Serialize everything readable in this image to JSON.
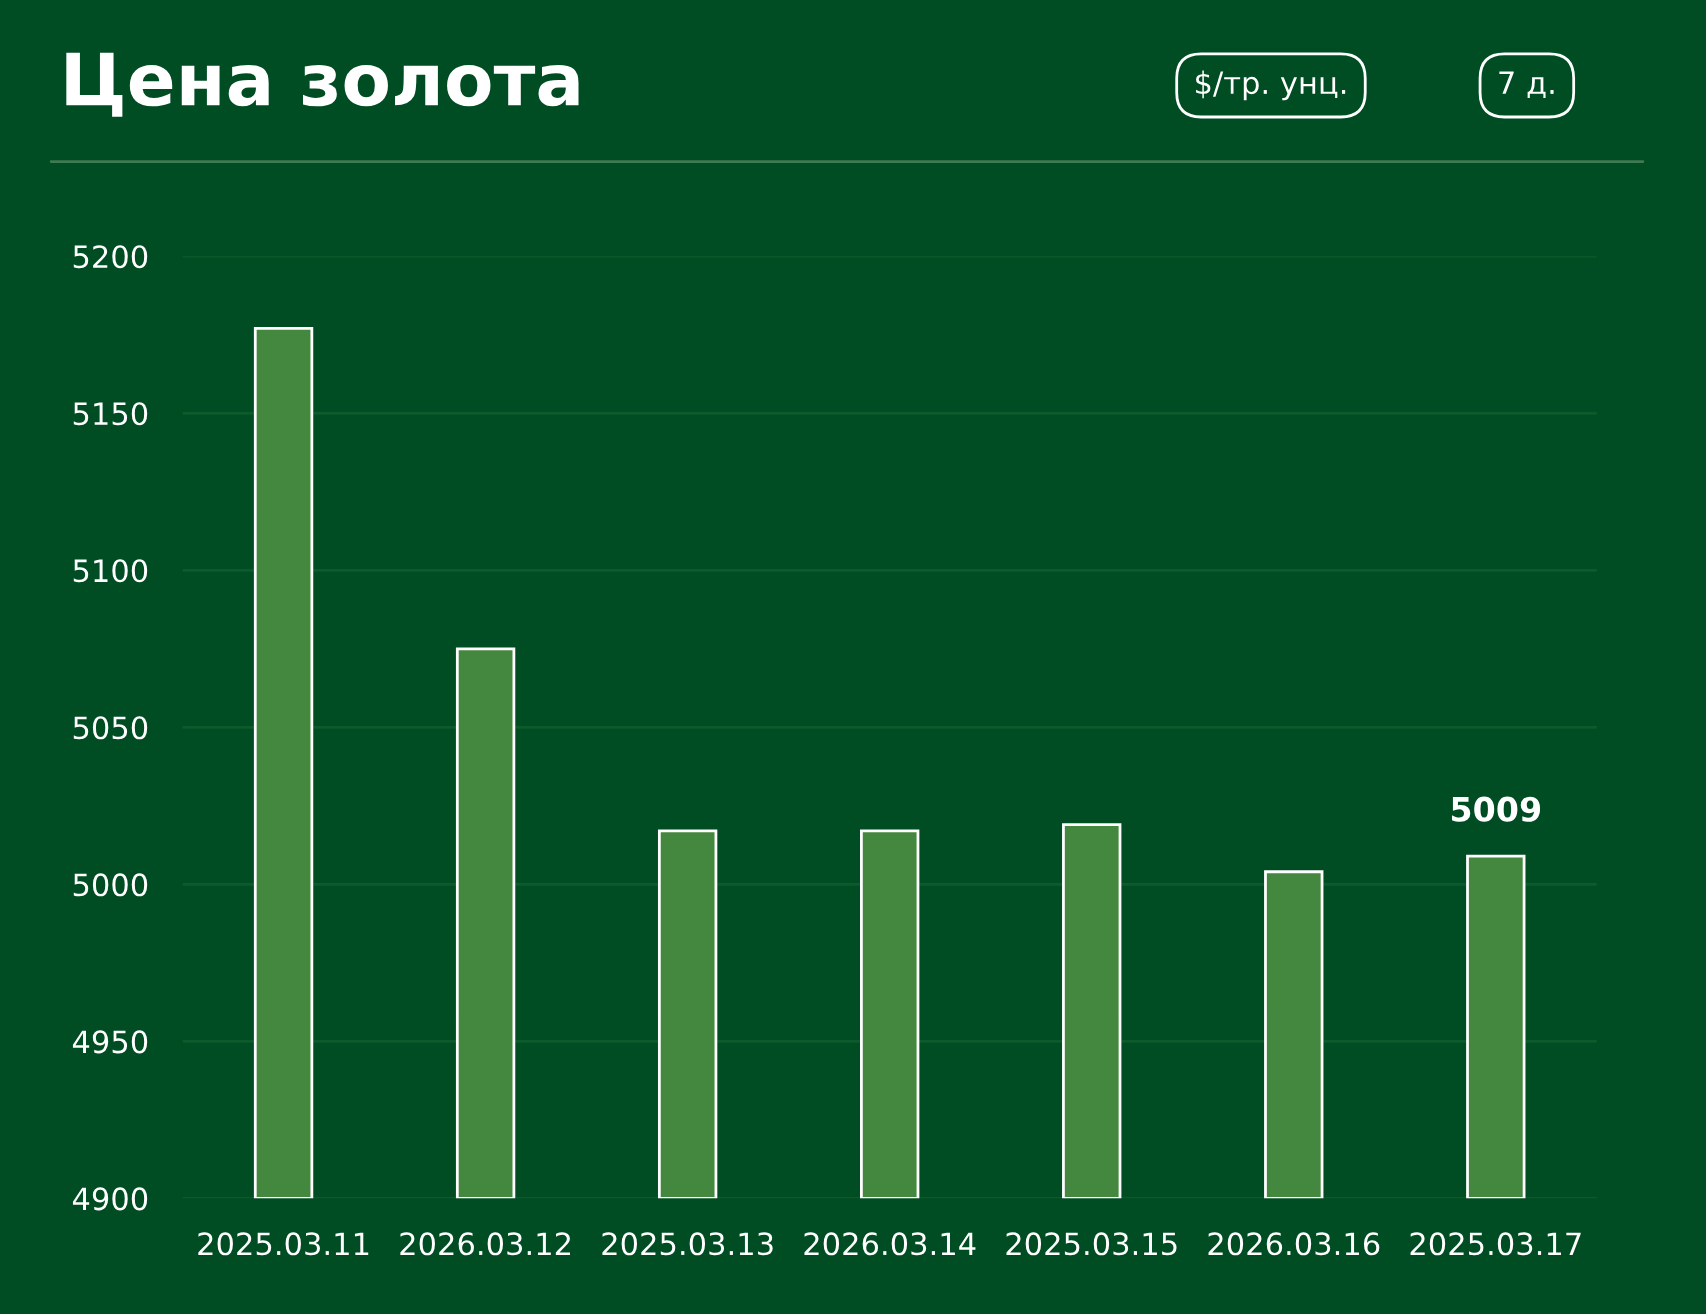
{
  "chart_data": {
    "type": "bar",
    "title": "Цена золота",
    "annotations": [
      "$/тр. унц.",
      "7 д."
    ],
    "categories": [
      "2025.03.11",
      "2026.03.12",
      "2025.03.13",
      "2026.03.14",
      "2025.03.15",
      "2026.03.16",
      "2025.03.17"
    ],
    "values": [
      5177,
      5075,
      5017,
      5017,
      5019,
      5004,
      5009
    ],
    "value_labels": [
      null,
      null,
      null,
      null,
      null,
      null,
      "5009"
    ],
    "color": "#44873f",
    "ylim": [
      4900,
      5200
    ],
    "yticks": [
      4900,
      4950,
      5000,
      5050,
      5100,
      5150,
      5200
    ],
    "grid": "y",
    "legend": false
  }
}
